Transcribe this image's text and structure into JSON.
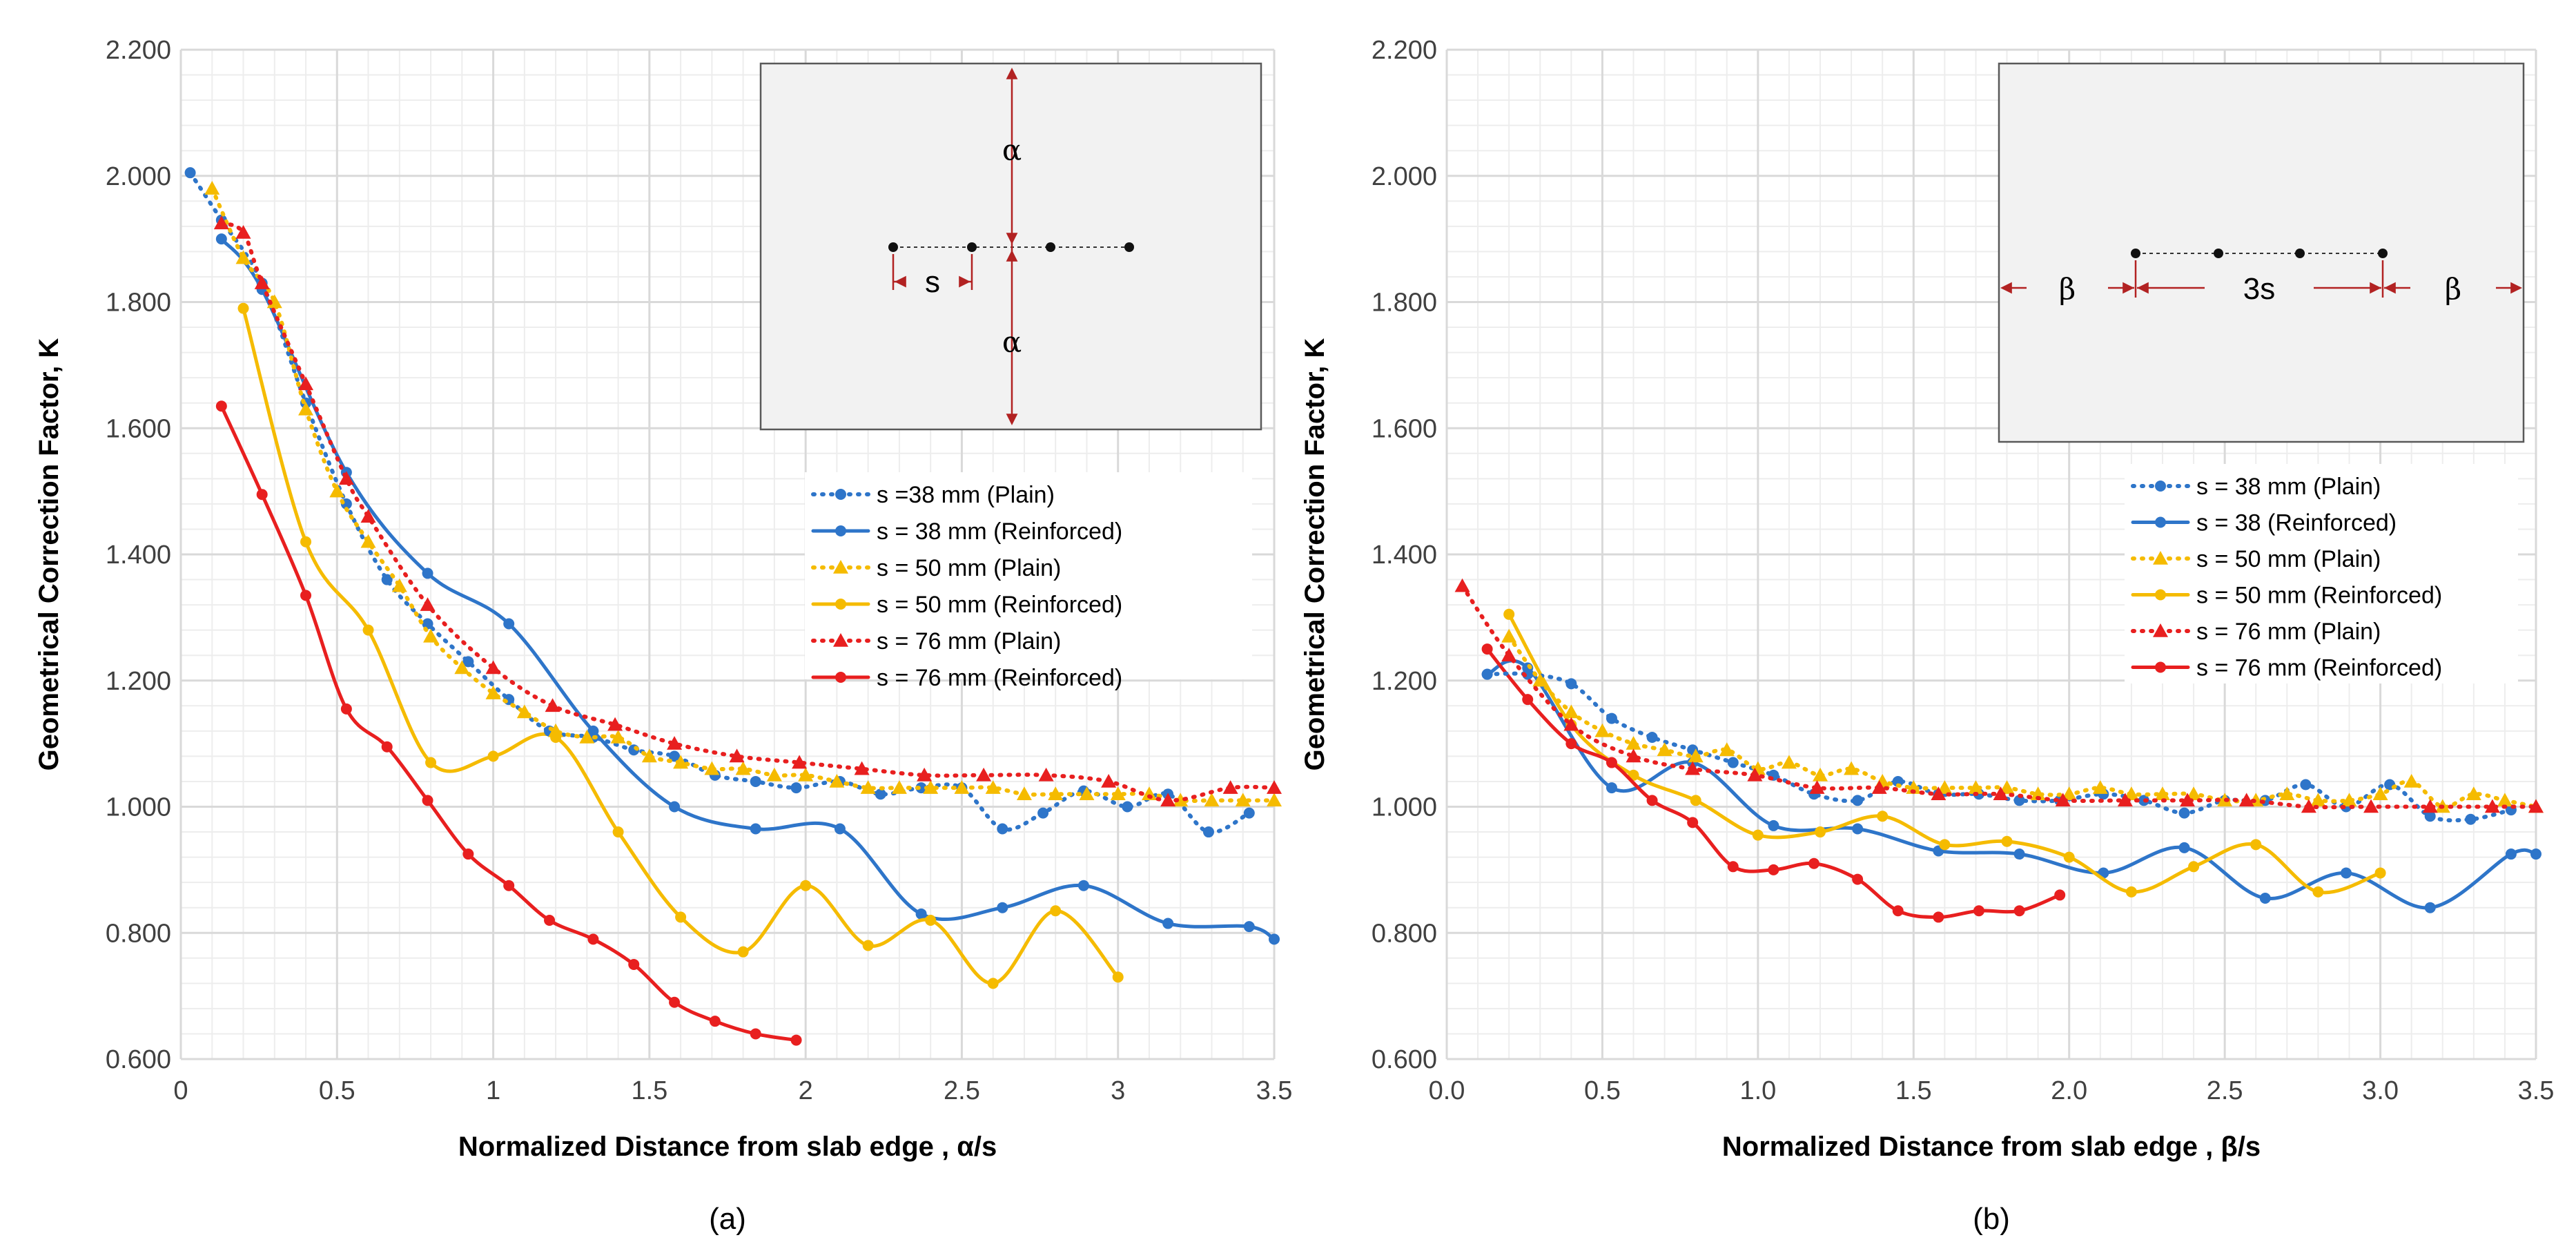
{
  "colors": {
    "blue": "#2E75C9",
    "yellow": "#F5BB00",
    "red": "#E81F1F",
    "grid_major": "#D9D9D9",
    "grid_minor": "#EDEDED",
    "inset_fill": "#F2F2F2",
    "inset_arrow": "#B22222"
  },
  "chart_data": [
    {
      "type": "line",
      "panel_label": "(a)",
      "xlabel": "Normalized Distance from slab edge , α/s",
      "ylabel": "Geometrical Correction Factor, K",
      "xlim": [
        0,
        3.5
      ],
      "ylim": [
        0.6,
        2.2
      ],
      "xticks": [
        0,
        0.5,
        1,
        1.5,
        2,
        2.5,
        3,
        3.5
      ],
      "xtick_labels": [
        "0",
        "0.5",
        "1",
        "1.5",
        "2",
        "2.5",
        "3",
        "3.5"
      ],
      "yticks": [
        0.6,
        0.8,
        1.0,
        1.2,
        1.4,
        1.6,
        1.8,
        2.0,
        2.2
      ],
      "ytick_labels": [
        "0.600",
        "0.800",
        "1.000",
        "1.200",
        "1.400",
        "1.600",
        "1.800",
        "2.000",
        "2.200"
      ],
      "grid": true,
      "legend_position": "right, below inset",
      "inset": {
        "labels": [
          "α",
          "α",
          "s"
        ]
      },
      "series": [
        {
          "name": "s =38 mm (Plain)",
          "color": "blue",
          "style": "dotted",
          "marker": "circle",
          "x": [
            0.03,
            0.13,
            0.26,
            0.4,
            0.53,
            0.66,
            0.79,
            0.92,
            1.05,
            1.18,
            1.32,
            1.45,
            1.58,
            1.71,
            1.84,
            1.97,
            2.11,
            2.24,
            2.37,
            2.5,
            2.63,
            2.76,
            2.89,
            3.03,
            3.16,
            3.29,
            3.42
          ],
          "y": [
            2.005,
            1.93,
            1.83,
            1.64,
            1.48,
            1.36,
            1.29,
            1.23,
            1.17,
            1.12,
            1.11,
            1.09,
            1.08,
            1.05,
            1.04,
            1.03,
            1.04,
            1.02,
            1.03,
            1.03,
            0.965,
            0.99,
            1.025,
            1.0,
            1.02,
            0.96,
            0.99
          ]
        },
        {
          "name": "s = 38 mm (Reinforced)",
          "color": "blue",
          "style": "solid",
          "marker": "circle",
          "x": [
            0.13,
            0.26,
            0.53,
            0.79,
            1.05,
            1.32,
            1.58,
            1.84,
            2.11,
            2.37,
            2.63,
            2.89,
            3.16,
            3.42,
            3.5
          ],
          "y": [
            1.9,
            1.82,
            1.53,
            1.37,
            1.29,
            1.12,
            1.0,
            0.965,
            0.965,
            0.83,
            0.84,
            0.875,
            0.815,
            0.81,
            0.79
          ]
        },
        {
          "name": "s = 50 mm (Plain)",
          "color": "yellow",
          "style": "dotted",
          "marker": "triangle",
          "x": [
            0.1,
            0.2,
            0.3,
            0.4,
            0.5,
            0.6,
            0.7,
            0.8,
            0.9,
            1.0,
            1.1,
            1.2,
            1.3,
            1.4,
            1.5,
            1.6,
            1.7,
            1.8,
            1.9,
            2.0,
            2.1,
            2.2,
            2.3,
            2.4,
            2.5,
            2.6,
            2.7,
            2.8,
            2.9,
            3.0,
            3.1,
            3.2,
            3.3,
            3.4,
            3.5
          ],
          "y": [
            1.98,
            1.87,
            1.8,
            1.63,
            1.5,
            1.42,
            1.35,
            1.27,
            1.22,
            1.18,
            1.15,
            1.12,
            1.11,
            1.11,
            1.08,
            1.07,
            1.06,
            1.06,
            1.05,
            1.05,
            1.04,
            1.03,
            1.03,
            1.03,
            1.03,
            1.03,
            1.02,
            1.02,
            1.02,
            1.02,
            1.02,
            1.01,
            1.01,
            1.01,
            1.01
          ]
        },
        {
          "name": "s = 50 mm (Reinforced)",
          "color": "yellow",
          "style": "solid",
          "marker": "circle",
          "x": [
            0.2,
            0.4,
            0.6,
            0.8,
            1.0,
            1.2,
            1.4,
            1.6,
            1.8,
            2.0,
            2.2,
            2.4,
            2.6,
            2.8,
            3.0
          ],
          "y": [
            1.79,
            1.42,
            1.28,
            1.07,
            1.08,
            1.11,
            0.96,
            0.825,
            0.77,
            0.875,
            0.78,
            0.82,
            0.72,
            0.835,
            0.73
          ]
        },
        {
          "name": "s = 76 mm (Plain)",
          "color": "red",
          "style": "dotted",
          "marker": "triangle",
          "x": [
            0.13,
            0.2,
            0.26,
            0.4,
            0.53,
            0.6,
            0.79,
            1.0,
            1.19,
            1.39,
            1.58,
            1.78,
            1.98,
            2.18,
            2.38,
            2.57,
            2.77,
            2.97,
            3.16,
            3.36,
            3.5
          ],
          "y": [
            1.925,
            1.91,
            1.83,
            1.67,
            1.52,
            1.46,
            1.32,
            1.22,
            1.16,
            1.13,
            1.1,
            1.08,
            1.07,
            1.06,
            1.05,
            1.05,
            1.05,
            1.04,
            1.01,
            1.03,
            1.03
          ]
        },
        {
          "name": "s = 76 mm (Reinforced)",
          "color": "red",
          "style": "solid",
          "marker": "circle",
          "x": [
            0.13,
            0.26,
            0.4,
            0.53,
            0.66,
            0.79,
            0.92,
            1.05,
            1.18,
            1.32,
            1.45,
            1.58,
            1.71,
            1.84,
            1.97
          ],
          "y": [
            1.635,
            1.495,
            1.335,
            1.155,
            1.095,
            1.01,
            0.925,
            0.875,
            0.82,
            0.79,
            0.75,
            0.69,
            0.66,
            0.64,
            0.63
          ]
        }
      ]
    },
    {
      "type": "line",
      "panel_label": "(b)",
      "xlabel": "Normalized Distance from slab edge , β/s",
      "ylabel": "Geometrical Correction Factor, K",
      "xlim": [
        0,
        3.5
      ],
      "ylim": [
        0.6,
        2.2
      ],
      "xticks": [
        0,
        0.5,
        1,
        1.5,
        2,
        2.5,
        3,
        3.5
      ],
      "xtick_labels": [
        "0.0",
        "0.5",
        "1.0",
        "1.5",
        "2.0",
        "2.5",
        "3.0",
        "3.5"
      ],
      "yticks": [
        0.6,
        0.8,
        1.0,
        1.2,
        1.4,
        1.6,
        1.8,
        2.0,
        2.2
      ],
      "ytick_labels": [
        "0.600",
        "0.800",
        "1.000",
        "1.200",
        "1.400",
        "1.600",
        "1.800",
        "2.000",
        "2.200"
      ],
      "grid": true,
      "legend_position": "right, below inset",
      "inset": {
        "labels": [
          "β",
          "3s",
          "β"
        ]
      },
      "series": [
        {
          "name": "s = 38 mm (Plain)",
          "color": "blue",
          "style": "dotted",
          "marker": "circle",
          "x": [
            0.13,
            0.26,
            0.4,
            0.53,
            0.66,
            0.79,
            0.92,
            1.05,
            1.18,
            1.32,
            1.45,
            1.58,
            1.71,
            1.84,
            1.97,
            2.11,
            2.24,
            2.37,
            2.5,
            2.63,
            2.76,
            2.89,
            3.03,
            3.16,
            3.29,
            3.42
          ],
          "y": [
            1.21,
            1.21,
            1.195,
            1.14,
            1.11,
            1.09,
            1.07,
            1.05,
            1.02,
            1.01,
            1.04,
            1.02,
            1.02,
            1.01,
            1.01,
            1.02,
            1.01,
            0.99,
            1.01,
            1.01,
            1.035,
            1.0,
            1.035,
            0.985,
            0.98,
            0.995
          ]
        },
        {
          "name": "s = 38 (Reinforced)",
          "color": "blue",
          "style": "solid",
          "marker": "circle",
          "x": [
            0.13,
            0.26,
            0.53,
            0.79,
            1.05,
            1.32,
            1.58,
            1.84,
            2.11,
            2.37,
            2.63,
            2.89,
            3.16,
            3.42,
            3.5
          ],
          "y": [
            1.21,
            1.22,
            1.03,
            1.07,
            0.97,
            0.965,
            0.93,
            0.925,
            0.895,
            0.935,
            0.855,
            0.895,
            0.84,
            0.925,
            0.925
          ]
        },
        {
          "name": "s = 50 mm (Plain)",
          "color": "yellow",
          "style": "dotted",
          "marker": "triangle",
          "x": [
            0.2,
            0.3,
            0.4,
            0.5,
            0.6,
            0.7,
            0.8,
            0.9,
            1.0,
            1.1,
            1.2,
            1.3,
            1.4,
            1.5,
            1.6,
            1.7,
            1.8,
            1.9,
            2.0,
            2.1,
            2.2,
            2.3,
            2.4,
            2.5,
            2.6,
            2.7,
            2.8,
            2.9,
            3.0,
            3.1,
            3.2,
            3.3,
            3.4,
            3.5
          ],
          "y": [
            1.27,
            1.2,
            1.15,
            1.12,
            1.1,
            1.09,
            1.08,
            1.09,
            1.06,
            1.07,
            1.05,
            1.06,
            1.04,
            1.03,
            1.03,
            1.03,
            1.03,
            1.02,
            1.02,
            1.03,
            1.02,
            1.02,
            1.02,
            1.01,
            1.01,
            1.02,
            1.01,
            1.01,
            1.02,
            1.04,
            1.0,
            1.02,
            1.01,
            1.0
          ]
        },
        {
          "name": "s = 50 mm (Reinforced)",
          "color": "yellow",
          "style": "solid",
          "marker": "circle",
          "x": [
            0.2,
            0.4,
            0.6,
            0.8,
            1.0,
            1.2,
            1.4,
            1.6,
            1.8,
            2.0,
            2.2,
            2.4,
            2.6,
            2.8,
            3.0
          ],
          "y": [
            1.305,
            1.13,
            1.05,
            1.01,
            0.955,
            0.96,
            0.985,
            0.94,
            0.945,
            0.92,
            0.865,
            0.905,
            0.94,
            0.865,
            0.895
          ]
        },
        {
          "name": "s = 76 mm (Plain)",
          "color": "red",
          "style": "dotted",
          "marker": "triangle",
          "x": [
            0.05,
            0.2,
            0.4,
            0.6,
            0.79,
            0.99,
            1.19,
            1.39,
            1.58,
            1.78,
            1.98,
            2.18,
            2.38,
            2.57,
            2.77,
            2.97,
            3.16,
            3.36,
            3.5
          ],
          "y": [
            1.35,
            1.24,
            1.13,
            1.08,
            1.06,
            1.05,
            1.03,
            1.03,
            1.02,
            1.02,
            1.01,
            1.01,
            1.01,
            1.01,
            1.0,
            1.0,
            1.0,
            1.0,
            1.0
          ]
        },
        {
          "name": "s = 76 mm (Reinforced)",
          "color": "red",
          "style": "solid",
          "marker": "circle",
          "x": [
            0.13,
            0.26,
            0.4,
            0.53,
            0.66,
            0.79,
            0.92,
            1.05,
            1.18,
            1.32,
            1.45,
            1.58,
            1.71,
            1.84,
            1.97
          ],
          "y": [
            1.25,
            1.17,
            1.1,
            1.07,
            1.01,
            0.975,
            0.905,
            0.9,
            0.91,
            0.885,
            0.835,
            0.825,
            0.835,
            0.835,
            0.86
          ]
        }
      ]
    }
  ]
}
